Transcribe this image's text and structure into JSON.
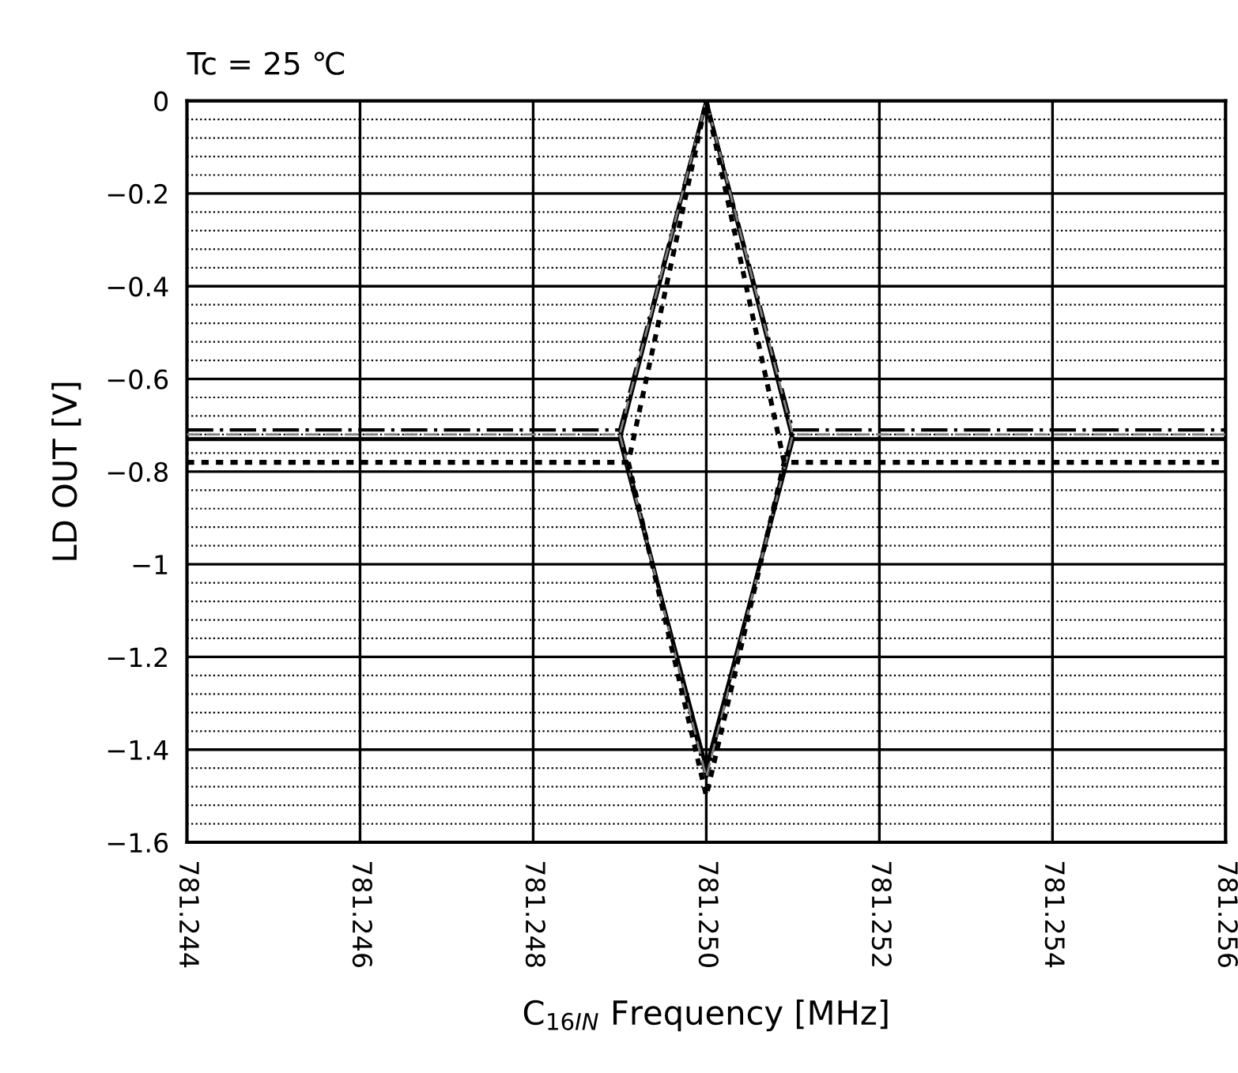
{
  "chart_data": {
    "type": "line",
    "title": "Tc = 25 ℃",
    "xlabel": "C$_{16IN}$ Frequency [MHz]",
    "ylabel": "LD OUT [V]",
    "x": [
      781.244,
      781.249,
      781.25,
      781.251,
      781.256
    ],
    "series": [
      {
        "color": "#000000",
        "line_style": "solid",
        "values": [
          -0.73,
          -0.73,
          0,
          -0.73,
          -0.73
        ]
      },
      {
        "color": "#000000",
        "line_style": "solid",
        "x": [
          781.249,
          781.25,
          781.251
        ],
        "values": [
          -0.73,
          -1.44,
          -0.73
        ]
      },
      {
        "color": "#000000",
        "line_style": "dashdot",
        "values": [
          -0.71,
          -0.71,
          0,
          -0.71,
          -0.71
        ]
      },
      {
        "color": "#000000",
        "line_style": "dashdot",
        "x": [
          781.249,
          781.25,
          781.251
        ],
        "values": [
          -0.71,
          -1.46,
          -0.71
        ]
      },
      {
        "color": "#808080",
        "line_style": "dashed",
        "values": [
          -0.72,
          -0.72,
          0,
          -0.72,
          -0.72
        ]
      },
      {
        "color": "#808080",
        "line_style": "dashed",
        "x": [
          781.249,
          781.25,
          781.251
        ],
        "values": [
          -0.72,
          -1.46,
          -0.72
        ]
      },
      {
        "color": "#000000",
        "line_style": "dotted",
        "x": [
          781.244,
          781.2491,
          781.25,
          781.2509,
          781.256
        ],
        "values": [
          -0.78,
          -0.78,
          0,
          -0.78,
          -0.78
        ]
      },
      {
        "color": "#000000",
        "line_style": "dotted",
        "x": [
          781.2491,
          781.25,
          781.2509
        ],
        "values": [
          -0.78,
          -1.5,
          -0.78
        ]
      }
    ],
    "xlim": [
      781.244,
      781.256
    ],
    "ylim": [
      -1.6,
      0
    ],
    "xticks": [
      {
        "value": 781.244,
        "label": "781.244"
      },
      {
        "value": 781.246,
        "label": "781.246"
      },
      {
        "value": 781.248,
        "label": "781.248"
      },
      {
        "value": 781.25,
        "label": "781.250"
      },
      {
        "value": 781.252,
        "label": "781.252"
      },
      {
        "value": 781.254,
        "label": "781.254"
      },
      {
        "value": 781.256,
        "label": "781.256"
      }
    ],
    "yticks": [
      0,
      {
        "value": -0.04,
        "label": null
      },
      {
        "value": -0.08,
        "label": null
      },
      {
        "value": -0.12,
        "label": null
      },
      {
        "value": -0.16,
        "label": null
      },
      {
        "value": -0.2,
        "label": "−0.2"
      },
      {
        "value": -0.24,
        "label": null
      },
      {
        "value": -0.28,
        "label": null
      },
      {
        "value": -0.32,
        "label": null
      },
      {
        "value": -0.36,
        "label": null
      },
      {
        "value": -0.4,
        "label": "−0.4"
      },
      {
        "value": -0.44,
        "label": null
      },
      {
        "value": -0.48,
        "label": null
      },
      {
        "value": -0.52,
        "label": null
      },
      {
        "value": -0.56,
        "label": null
      },
      {
        "value": -0.6,
        "label": "−0.6"
      },
      {
        "value": -0.64,
        "label": null
      },
      {
        "value": -0.68,
        "label": null
      },
      {
        "value": -0.72,
        "label": null
      },
      {
        "value": -0.76,
        "label": null
      },
      {
        "value": -0.8,
        "label": "−0.8"
      },
      {
        "value": -0.84,
        "label": null
      },
      {
        "value": -0.88,
        "label": null
      },
      {
        "value": -0.92,
        "label": null
      },
      {
        "value": -0.96,
        "label": null
      },
      {
        "value": -1,
        "label": "−1"
      },
      {
        "value": -1.04,
        "label": null
      },
      {
        "value": -1.08,
        "label": null
      },
      {
        "value": -1.12,
        "label": null
      },
      {
        "value": -1.16,
        "label": null
      },
      {
        "value": -1.2,
        "label": "−1.2"
      },
      {
        "value": -1.24,
        "label": null
      },
      {
        "value": -1.28,
        "label": null
      },
      {
        "value": -1.32,
        "label": null
      },
      {
        "value": -1.36,
        "label": null
      },
      {
        "value": -1.4,
        "label": "−1.4"
      },
      {
        "value": -1.44,
        "label": null
      },
      {
        "value": -1.48,
        "label": null
      },
      {
        "value": -1.52,
        "label": null
      },
      {
        "value": -1.56,
        "label": null
      },
      {
        "value": -1.6,
        "label": "−1.6"
      }
    ],
    "grid": true,
    "legend": false,
    "marker": "none"
  }
}
